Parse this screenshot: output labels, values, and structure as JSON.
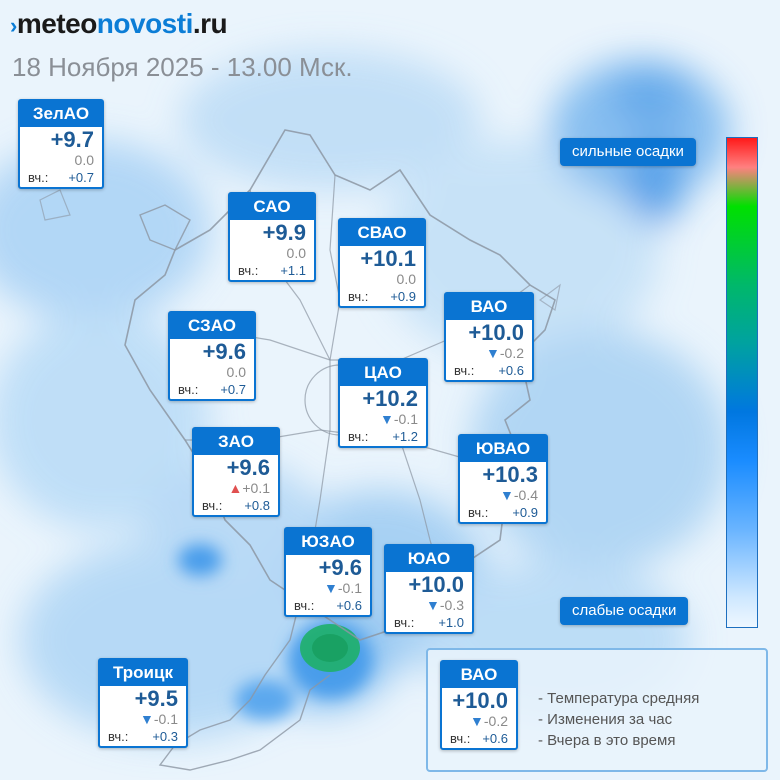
{
  "logo": {
    "prefix": "›",
    "brand_a": "meteo",
    "brand_b": "novosti",
    "brand_c": ".ru"
  },
  "datetime": "18 Ноября 2025 - 13.00 Мск.",
  "scale": {
    "top_label": "сильные осадки",
    "bottom_label": "слабые осадки"
  },
  "yest_label": "вч.:",
  "districts": [
    {
      "key": "zelao",
      "name": "ЗелАО",
      "temp": "+9.7",
      "change": "0.0",
      "trend": "none",
      "yesterday": "+0.7"
    },
    {
      "key": "sao",
      "name": "САО",
      "temp": "+9.9",
      "change": "0.0",
      "trend": "none",
      "yesterday": "+1.1"
    },
    {
      "key": "svao",
      "name": "СВАО",
      "temp": "+10.1",
      "change": "0.0",
      "trend": "none",
      "yesterday": "+0.9"
    },
    {
      "key": "szao",
      "name": "СЗАО",
      "temp": "+9.6",
      "change": "0.0",
      "trend": "none",
      "yesterday": "+0.7"
    },
    {
      "key": "vao",
      "name": "ВАО",
      "temp": "+10.0",
      "change": "-0.2",
      "trend": "down",
      "yesterday": "+0.6"
    },
    {
      "key": "cao",
      "name": "ЦАО",
      "temp": "+10.2",
      "change": "-0.1",
      "trend": "down",
      "yesterday": "+1.2"
    },
    {
      "key": "zao",
      "name": "ЗАО",
      "temp": "+9.6",
      "change": "+0.1",
      "trend": "up",
      "yesterday": "+0.8"
    },
    {
      "key": "yuvao",
      "name": "ЮВАО",
      "temp": "+10.3",
      "change": "-0.4",
      "trend": "down",
      "yesterday": "+0.9"
    },
    {
      "key": "yuzao",
      "name": "ЮЗАО",
      "temp": "+9.6",
      "change": "-0.1",
      "trend": "down",
      "yesterday": "+0.6"
    },
    {
      "key": "yuao",
      "name": "ЮАО",
      "temp": "+10.0",
      "change": "-0.3",
      "trend": "down",
      "yesterday": "+1.0"
    },
    {
      "key": "troitsk",
      "name": "Троицк",
      "temp": "+9.5",
      "change": "-0.1",
      "trend": "down",
      "yesterday": "+0.3"
    }
  ],
  "legend": {
    "example": {
      "name": "ВАО",
      "temp": "+10.0",
      "change": "-0.2",
      "trend": "down",
      "yesterday": "+0.6"
    },
    "items": [
      "- Температура средняя",
      "- Изменения за час",
      "- Вчера в это время"
    ]
  },
  "colors": {
    "accent": "#0a74d2",
    "temp_text": "#1e5b96",
    "trend_down": "#2f7fd0",
    "trend_up": "#e05050"
  }
}
